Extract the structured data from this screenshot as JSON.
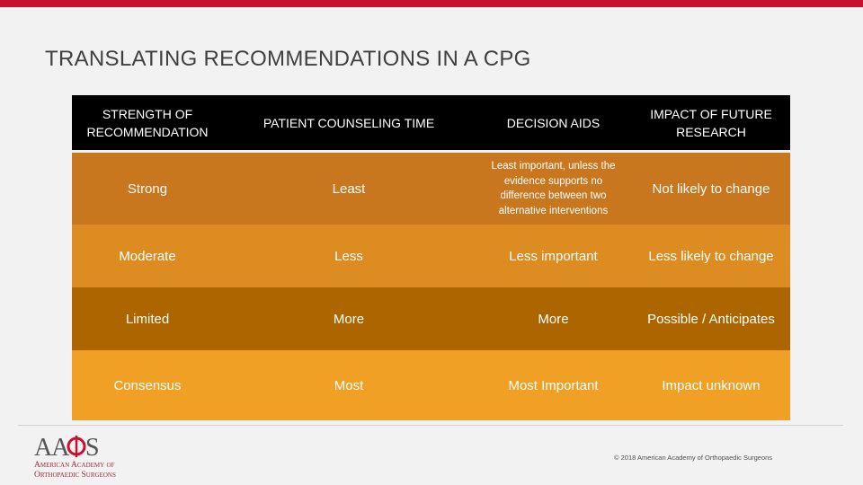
{
  "title": "TRANSLATING RECOMMENDATIONS IN A CPG",
  "colors": {
    "top_bar": "#c8102e",
    "header_bg": "#000000",
    "row_strong": "#c8771f",
    "row_moderate": "#dd8c22",
    "row_limited": "#ad6500",
    "row_consensus": "#f0a024"
  },
  "table": {
    "headers": [
      "STRENGTH OF RECOMMENDATION",
      "PATIENT COUNSELING TIME",
      "DECISION AIDS",
      "IMPACT OF FUTURE RESEARCH"
    ],
    "rows": [
      [
        "Strong",
        "Least",
        "Least important, unless the evidence supports no difference between two alternative interventions",
        "Not likely to change"
      ],
      [
        "Moderate",
        "Less",
        "Less important",
        "Less likely to change"
      ],
      [
        "Limited",
        "More",
        "More",
        "Possible / Anticipates"
      ],
      [
        "Consensus",
        "Most",
        "Most Important",
        "Impact unknown"
      ]
    ]
  },
  "footer": {
    "logo_text": "AAOS",
    "logo_line1": "American Academy of",
    "logo_line2": "Orthopaedic Surgeons",
    "copyright": "© 2018 American Academy of Orthopaedic Surgeons"
  }
}
